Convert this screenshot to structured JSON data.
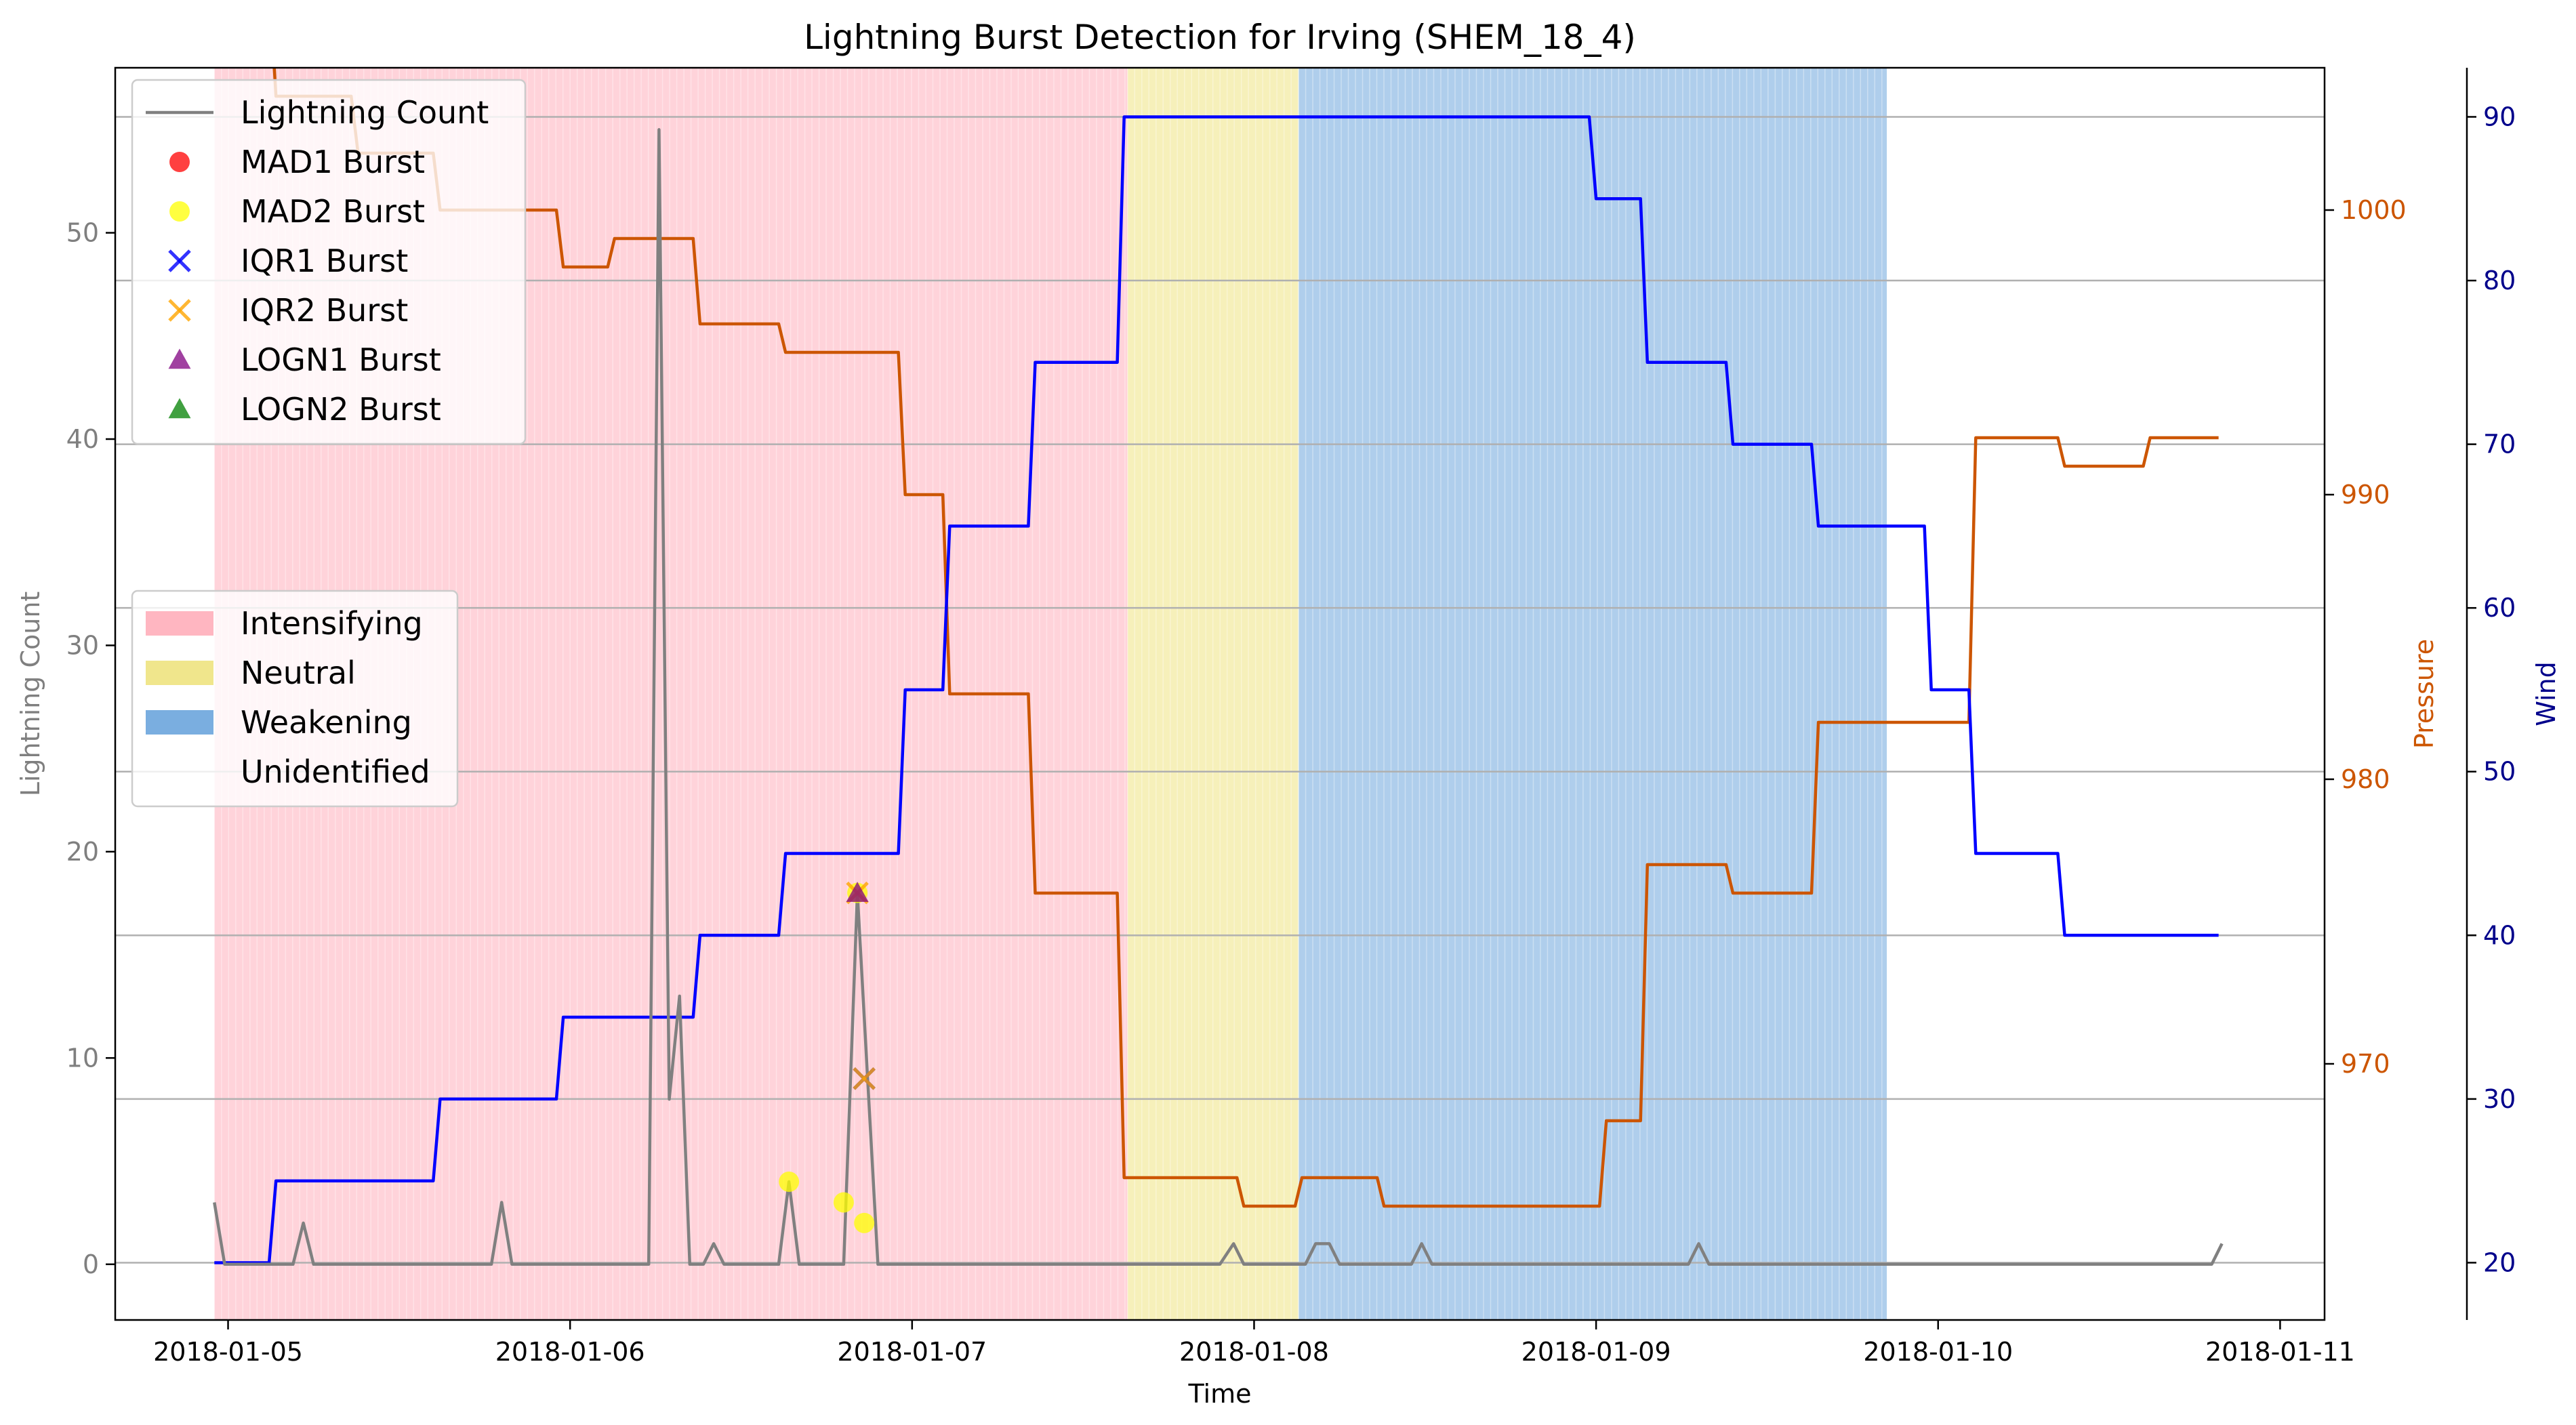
{
  "chart_data": {
    "type": "line",
    "title": "Lightning Burst Detection for Irving (SHEM_18_4)",
    "xlabel": "Time",
    "x_ticks": [
      "2018-01-05",
      "2018-01-06",
      "2018-01-07",
      "2018-01-08",
      "2018-01-09",
      "2018-01-10",
      "2018-01-11"
    ],
    "xlim_days": [
      -0.33,
      6.13
    ],
    "axes": {
      "left": {
        "label": "Lightning Count",
        "color": "#7f7f7f",
        "ylim": [
          -2.7,
          58
        ],
        "ticks": [
          0,
          10,
          20,
          30,
          40,
          50
        ]
      },
      "right1": {
        "label": "Pressure",
        "color": "#cc5500",
        "ylim": [
          961,
          1005
        ],
        "ticks": [
          970,
          980,
          990,
          1000
        ]
      },
      "right2": {
        "label": "Wind",
        "color": "#00008b",
        "ylim": [
          16.5,
          93
        ],
        "ticks": [
          20,
          30,
          40,
          50,
          60,
          70,
          80,
          90
        ]
      }
    },
    "regions": [
      {
        "label": "Intensifying",
        "start": -0.04,
        "end": 2.63,
        "color": "#ffb6c1"
      },
      {
        "label": "Neutral",
        "start": 2.63,
        "end": 3.13,
        "color": "#f0e68c"
      },
      {
        "label": "Weakening",
        "start": 3.13,
        "end": 4.85,
        "color": "#7aaee0"
      }
    ],
    "series": [
      {
        "name": "Lightning Count",
        "axis": "left",
        "color": "#808080",
        "points": [
          [
            -0.04,
            3
          ],
          [
            -0.01,
            0
          ],
          [
            0.19,
            0
          ],
          [
            0.22,
            2
          ],
          [
            0.25,
            0
          ],
          [
            0.77,
            0
          ],
          [
            0.8,
            3
          ],
          [
            0.83,
            0
          ],
          [
            1.23,
            0
          ],
          [
            1.26,
            55
          ],
          [
            1.29,
            8
          ],
          [
            1.32,
            13
          ],
          [
            1.35,
            0
          ],
          [
            1.39,
            0
          ],
          [
            1.42,
            1
          ],
          [
            1.45,
            0
          ],
          [
            1.61,
            0
          ],
          [
            1.64,
            4
          ],
          [
            1.67,
            0
          ],
          [
            1.8,
            0
          ],
          [
            1.84,
            18
          ],
          [
            1.87,
            9
          ],
          [
            1.9,
            0
          ],
          [
            2.9,
            0
          ],
          [
            2.94,
            1
          ],
          [
            2.97,
            0
          ],
          [
            3.15,
            0
          ],
          [
            3.18,
            1
          ],
          [
            3.22,
            1
          ],
          [
            3.25,
            0
          ],
          [
            3.46,
            0
          ],
          [
            3.49,
            1
          ],
          [
            3.52,
            0
          ],
          [
            4.27,
            0
          ],
          [
            4.3,
            1
          ],
          [
            4.33,
            0
          ],
          [
            5.8,
            0
          ],
          [
            5.83,
            1
          ]
        ]
      },
      {
        "name": "Pressure",
        "axis": "right1",
        "color": "#cc5500",
        "points": [
          [
            -0.04,
            1008
          ],
          [
            0.12,
            1008
          ],
          [
            0.14,
            1004
          ],
          [
            0.36,
            1004
          ],
          [
            0.38,
            1002
          ],
          [
            0.6,
            1002
          ],
          [
            0.62,
            1000
          ],
          [
            0.96,
            1000
          ],
          [
            0.98,
            998
          ],
          [
            1.11,
            998
          ],
          [
            1.13,
            999
          ],
          [
            1.36,
            999
          ],
          [
            1.38,
            996
          ],
          [
            1.61,
            996
          ],
          [
            1.63,
            995
          ],
          [
            1.96,
            995
          ],
          [
            1.98,
            990
          ],
          [
            2.09,
            990
          ],
          [
            2.11,
            983
          ],
          [
            2.34,
            983
          ],
          [
            2.36,
            976
          ],
          [
            2.6,
            976
          ],
          [
            2.62,
            966
          ],
          [
            2.95,
            966
          ],
          [
            2.97,
            965
          ],
          [
            3.12,
            965
          ],
          [
            3.14,
            966
          ],
          [
            3.36,
            966
          ],
          [
            3.38,
            965
          ],
          [
            4.01,
            965
          ],
          [
            4.03,
            968
          ],
          [
            4.13,
            968
          ],
          [
            4.15,
            977
          ],
          [
            4.38,
            977
          ],
          [
            4.4,
            976
          ],
          [
            4.63,
            976
          ],
          [
            4.65,
            982
          ],
          [
            5.09,
            982
          ],
          [
            5.11,
            992
          ],
          [
            5.35,
            992
          ],
          [
            5.37,
            991
          ],
          [
            5.6,
            991
          ],
          [
            5.62,
            992
          ],
          [
            5.82,
            992
          ]
        ]
      },
      {
        "name": "Wind",
        "axis": "right2",
        "color": "#0000ff",
        "points": [
          [
            -0.04,
            20
          ],
          [
            0.12,
            20
          ],
          [
            0.14,
            25
          ],
          [
            0.6,
            25
          ],
          [
            0.62,
            30
          ],
          [
            0.96,
            30
          ],
          [
            0.98,
            35
          ],
          [
            1.36,
            35
          ],
          [
            1.38,
            40
          ],
          [
            1.61,
            40
          ],
          [
            1.63,
            45
          ],
          [
            1.96,
            45
          ],
          [
            1.98,
            55
          ],
          [
            2.09,
            55
          ],
          [
            2.11,
            65
          ],
          [
            2.34,
            65
          ],
          [
            2.36,
            75
          ],
          [
            2.6,
            75
          ],
          [
            2.62,
            90
          ],
          [
            3.98,
            90
          ],
          [
            4.0,
            85
          ],
          [
            4.13,
            85
          ],
          [
            4.15,
            75
          ],
          [
            4.38,
            75
          ],
          [
            4.4,
            70
          ],
          [
            4.63,
            70
          ],
          [
            4.65,
            65
          ],
          [
            4.96,
            65
          ],
          [
            4.98,
            55
          ],
          [
            5.09,
            55
          ],
          [
            5.11,
            45
          ],
          [
            5.35,
            45
          ],
          [
            5.37,
            40
          ],
          [
            5.82,
            40
          ]
        ]
      }
    ],
    "markers": [
      {
        "name": "MAD1 Burst",
        "symbol": "circle",
        "color": "#ff0000",
        "points": []
      },
      {
        "name": "MAD2 Burst",
        "symbol": "circle",
        "color": "#ffff00",
        "points": [
          [
            1.64,
            4
          ],
          [
            1.8,
            3
          ],
          [
            1.84,
            18
          ],
          [
            1.86,
            2
          ]
        ]
      },
      {
        "name": "IQR1 Burst",
        "symbol": "x",
        "color": "#0000ff",
        "points": [
          [
            1.86,
            9
          ]
        ]
      },
      {
        "name": "IQR2 Burst",
        "symbol": "x",
        "color": "#ffa500",
        "points": [
          [
            1.84,
            18
          ],
          [
            1.86,
            9
          ]
        ]
      },
      {
        "name": "LOGN1 Burst",
        "symbol": "triangle",
        "color": "#800080",
        "points": [
          [
            1.84,
            18
          ]
        ]
      },
      {
        "name": "LOGN2 Burst",
        "symbol": "triangle",
        "color": "#008000",
        "points": []
      }
    ],
    "legend_series": {
      "placement": "upper-left",
      "entries": [
        "Lightning Count",
        "MAD1 Burst",
        "MAD2 Burst",
        "IQR1 Burst",
        "IQR2 Burst",
        "LOGN1 Burst",
        "LOGN2 Burst"
      ]
    },
    "legend_regions": {
      "placement": "center-left",
      "entries": [
        "Intensifying",
        "Neutral",
        "Weakening",
        "Unidentified"
      ]
    },
    "grid": true
  }
}
